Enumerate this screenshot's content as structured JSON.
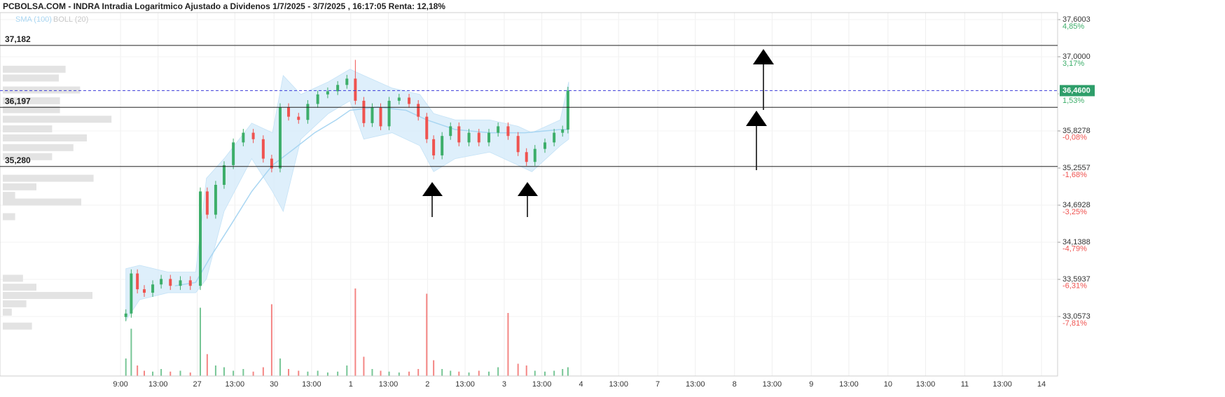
{
  "chart_data": {
    "type": "candlestick",
    "title": "PCBOLSA.COM - INDRA Intradia Logaritmico Ajustado a Dividenos 1/7/2025 - 3/7/2025 , 16:17:05 Renta: 12,18%",
    "log_scale": true,
    "grid": true,
    "up_color": "#3dae6a",
    "down_color": "#ef5350",
    "xlim": [
      -1.57,
      12.21
    ],
    "xticks": [
      {
        "value": 0,
        "label": "9:00"
      },
      {
        "value": 0.49,
        "label": "13:00"
      },
      {
        "value": 1,
        "label": "27"
      },
      {
        "value": 1.49,
        "label": "13:00"
      },
      {
        "value": 2,
        "label": "30"
      },
      {
        "value": 2.49,
        "label": "13:00"
      },
      {
        "value": 3,
        "label": "1"
      },
      {
        "value": 3.49,
        "label": "13:00"
      },
      {
        "value": 4,
        "label": "2"
      },
      {
        "value": 4.49,
        "label": "13:00"
      },
      {
        "value": 5,
        "label": "3"
      },
      {
        "value": 5.49,
        "label": "13:00"
      },
      {
        "value": 6,
        "label": "4"
      },
      {
        "value": 6.49,
        "label": "13:00"
      },
      {
        "value": 7,
        "label": "7"
      },
      {
        "value": 7.49,
        "label": "13:00"
      },
      {
        "value": 8,
        "label": "8"
      },
      {
        "value": 8.49,
        "label": "13:00"
      },
      {
        "value": 9,
        "label": "9"
      },
      {
        "value": 9.49,
        "label": "13:00"
      },
      {
        "value": 10,
        "label": "10"
      },
      {
        "value": 10.49,
        "label": "13:00"
      },
      {
        "value": 11,
        "label": "11"
      },
      {
        "value": 11.49,
        "label": "13:00"
      },
      {
        "value": 12,
        "label": "14"
      }
    ],
    "ylim": [
      32.215,
      37.715
    ],
    "yticks": [
      {
        "value": 37.6003,
        "label": "37,6003"
      },
      {
        "value": 37.0,
        "label": "37,0000"
      },
      {
        "value": 35.8278,
        "label": "35,8278"
      },
      {
        "value": 35.2557,
        "label": "35,2557"
      },
      {
        "value": 34.6928,
        "label": "34,6928"
      },
      {
        "value": 34.1388,
        "label": "34,1388"
      },
      {
        "value": 33.5937,
        "label": "33,5937"
      },
      {
        "value": 33.0573,
        "label": "33,0573"
      }
    ],
    "y2lim": [
      -10.16,
      5.17
    ],
    "y2ticks": [
      {
        "value": 4.85,
        "label": "4,85%"
      },
      {
        "value": 3.17,
        "label": "3,17%"
      },
      {
        "value": 1.53,
        "label": "1,53%"
      },
      {
        "value": -0.08,
        "label": "-0,08%"
      },
      {
        "value": -1.68,
        "label": "-1,68%"
      },
      {
        "value": -3.25,
        "label": "-3,25%"
      },
      {
        "value": -4.79,
        "label": "-4,79%"
      },
      {
        "value": -6.31,
        "label": "-6,31%"
      },
      {
        "value": -7.81,
        "label": "-7,81%"
      }
    ],
    "levels": [
      {
        "value": 37.182,
        "label": "37,182"
      },
      {
        "value": 36.197,
        "label": "36,197"
      },
      {
        "value": 35.28,
        "label": "35,280"
      }
    ],
    "last": {
      "value": 36.46,
      "label": "36,4600",
      "color": "#2e9e6a"
    },
    "x": [
      0.07,
      0.14,
      0.22,
      0.31,
      0.42,
      0.53,
      0.65,
      0.78,
      0.91,
      1.04,
      1.13,
      1.24,
      1.35,
      1.47,
      1.6,
      1.73,
      1.86,
      1.97,
      2.08,
      2.19,
      2.32,
      2.44,
      2.57,
      2.7,
      2.83,
      2.95,
      3.06,
      3.17,
      3.28,
      3.39,
      3.5,
      3.63,
      3.76,
      3.88,
      3.99,
      4.08,
      4.19,
      4.3,
      4.41,
      4.54,
      4.67,
      4.8,
      4.92,
      5.05,
      5.18,
      5.29,
      5.4,
      5.53,
      5.65,
      5.76,
      5.83
    ],
    "open": [
      33.05,
      33.1,
      33.68,
      33.45,
      33.4,
      33.52,
      33.6,
      33.5,
      33.58,
      33.5,
      34.9,
      34.55,
      35.0,
      35.3,
      35.65,
      35.8,
      35.7,
      35.4,
      35.25,
      36.2,
      36.05,
      36.0,
      36.25,
      36.4,
      36.45,
      36.55,
      36.65,
      36.3,
      35.95,
      36.2,
      35.9,
      36.3,
      36.35,
      36.25,
      36.05,
      35.7,
      35.45,
      35.75,
      35.9,
      35.65,
      35.8,
      35.65,
      35.8,
      35.9,
      35.75,
      35.5,
      35.35,
      35.55,
      35.65,
      35.8,
      35.85
    ],
    "high": [
      33.16,
      33.74,
      33.74,
      33.51,
      33.58,
      33.66,
      33.66,
      33.64,
      33.64,
      34.96,
      34.96,
      35.06,
      35.36,
      35.71,
      35.86,
      35.86,
      35.76,
      35.46,
      36.26,
      36.26,
      36.11,
      36.31,
      36.46,
      36.51,
      36.61,
      36.71,
      36.95,
      36.36,
      36.26,
      36.26,
      36.36,
      36.41,
      36.41,
      36.31,
      36.11,
      35.76,
      35.81,
      35.96,
      35.96,
      35.86,
      35.86,
      35.86,
      35.96,
      35.96,
      35.81,
      35.56,
      35.61,
      35.71,
      35.86,
      35.91,
      36.52
    ],
    "low": [
      32.99,
      33.04,
      33.39,
      33.34,
      33.34,
      33.46,
      33.44,
      33.44,
      33.44,
      33.44,
      34.49,
      34.49,
      34.94,
      35.24,
      35.59,
      35.64,
      35.34,
      35.19,
      35.19,
      35.99,
      35.94,
      35.94,
      36.19,
      36.34,
      36.39,
      36.49,
      36.24,
      35.89,
      35.89,
      35.84,
      35.84,
      36.24,
      36.19,
      35.99,
      35.64,
      35.39,
      35.39,
      35.69,
      35.59,
      35.59,
      35.59,
      35.59,
      35.74,
      35.69,
      35.44,
      35.29,
      35.29,
      35.49,
      35.59,
      35.74,
      35.79
    ],
    "close": [
      33.1,
      33.68,
      33.45,
      33.4,
      33.52,
      33.6,
      33.5,
      33.58,
      33.5,
      34.9,
      34.55,
      35.0,
      35.3,
      35.65,
      35.8,
      35.7,
      35.4,
      35.25,
      36.2,
      36.05,
      36.0,
      36.25,
      36.4,
      36.45,
      36.55,
      36.65,
      36.3,
      35.95,
      36.2,
      35.9,
      36.3,
      36.35,
      36.25,
      36.05,
      35.7,
      35.45,
      35.75,
      35.9,
      35.65,
      35.8,
      35.65,
      35.8,
      35.9,
      35.75,
      35.5,
      35.35,
      35.55,
      35.65,
      35.8,
      35.85,
      36.46
    ],
    "volume": [
      20,
      54,
      12,
      6,
      5,
      8,
      5,
      6,
      4,
      78,
      25,
      12,
      10,
      6,
      8,
      5,
      10,
      82,
      20,
      8,
      6,
      5,
      6,
      4,
      5,
      12,
      100,
      22,
      8,
      6,
      5,
      4,
      5,
      8,
      94,
      18,
      8,
      6,
      5,
      4,
      6,
      5,
      10,
      72,
      14,
      12,
      6,
      5,
      6,
      8,
      10
    ],
    "volume_lim": [
      0,
      100
    ],
    "volume_profile": {
      "color": "#e3e3e3",
      "lim": [
        0,
        100
      ],
      "prices": [
        36.8,
        36.66,
        36.47,
        36.3,
        36.16,
        36.01,
        35.86,
        35.72,
        35.57,
        35.43,
        35.1,
        34.97,
        34.84,
        34.74,
        34.52,
        33.61,
        33.48,
        33.36,
        33.24,
        33.12,
        32.92
      ],
      "values": [
        56,
        50,
        69,
        51,
        51,
        97,
        44,
        75,
        63,
        44,
        81,
        30,
        11,
        70,
        11,
        18,
        30,
        80,
        21,
        8,
        26
      ]
    },
    "sma": {
      "name": "SMA (100)",
      "color": "#a9d6f2",
      "x": [
        0.71,
        0.98,
        1.16,
        1.44,
        1.71,
        1.98,
        2.26,
        2.53,
        2.81,
        2.99,
        3.35,
        3.72,
        3.99,
        4.36,
        4.81,
        5.27,
        5.73,
        5.84
      ],
      "values": [
        33.5,
        33.55,
        33.9,
        34.4,
        34.9,
        35.3,
        35.55,
        35.8,
        36.0,
        36.15,
        36.2,
        36.15,
        36.0,
        35.85,
        35.8,
        35.8,
        35.85,
        35.85
      ]
    },
    "boll": {
      "name": "BOLL (20)",
      "color": "#c8c8c8",
      "fill": "#d6ebfa",
      "x": [
        0.07,
        0.25,
        0.62,
        0.98,
        1.12,
        1.35,
        1.71,
        1.98,
        2.12,
        2.35,
        2.71,
        2.99,
        3.17,
        3.54,
        3.9,
        4.08,
        4.36,
        4.81,
        5.18,
        5.36,
        5.73,
        5.84
      ],
      "upper": [
        33.75,
        33.8,
        33.7,
        33.7,
        35.1,
        35.4,
        35.95,
        35.8,
        36.7,
        36.4,
        36.6,
        36.8,
        36.7,
        36.5,
        36.4,
        36.1,
        36.0,
        36.0,
        35.9,
        35.8,
        36.0,
        36.6
      ],
      "lower": [
        33.0,
        33.3,
        33.4,
        33.4,
        33.6,
        34.6,
        35.4,
        34.9,
        34.6,
        35.7,
        36.1,
        36.3,
        35.7,
        35.8,
        35.6,
        35.2,
        35.4,
        35.5,
        35.3,
        35.2,
        35.6,
        35.7
      ]
    }
  }
}
